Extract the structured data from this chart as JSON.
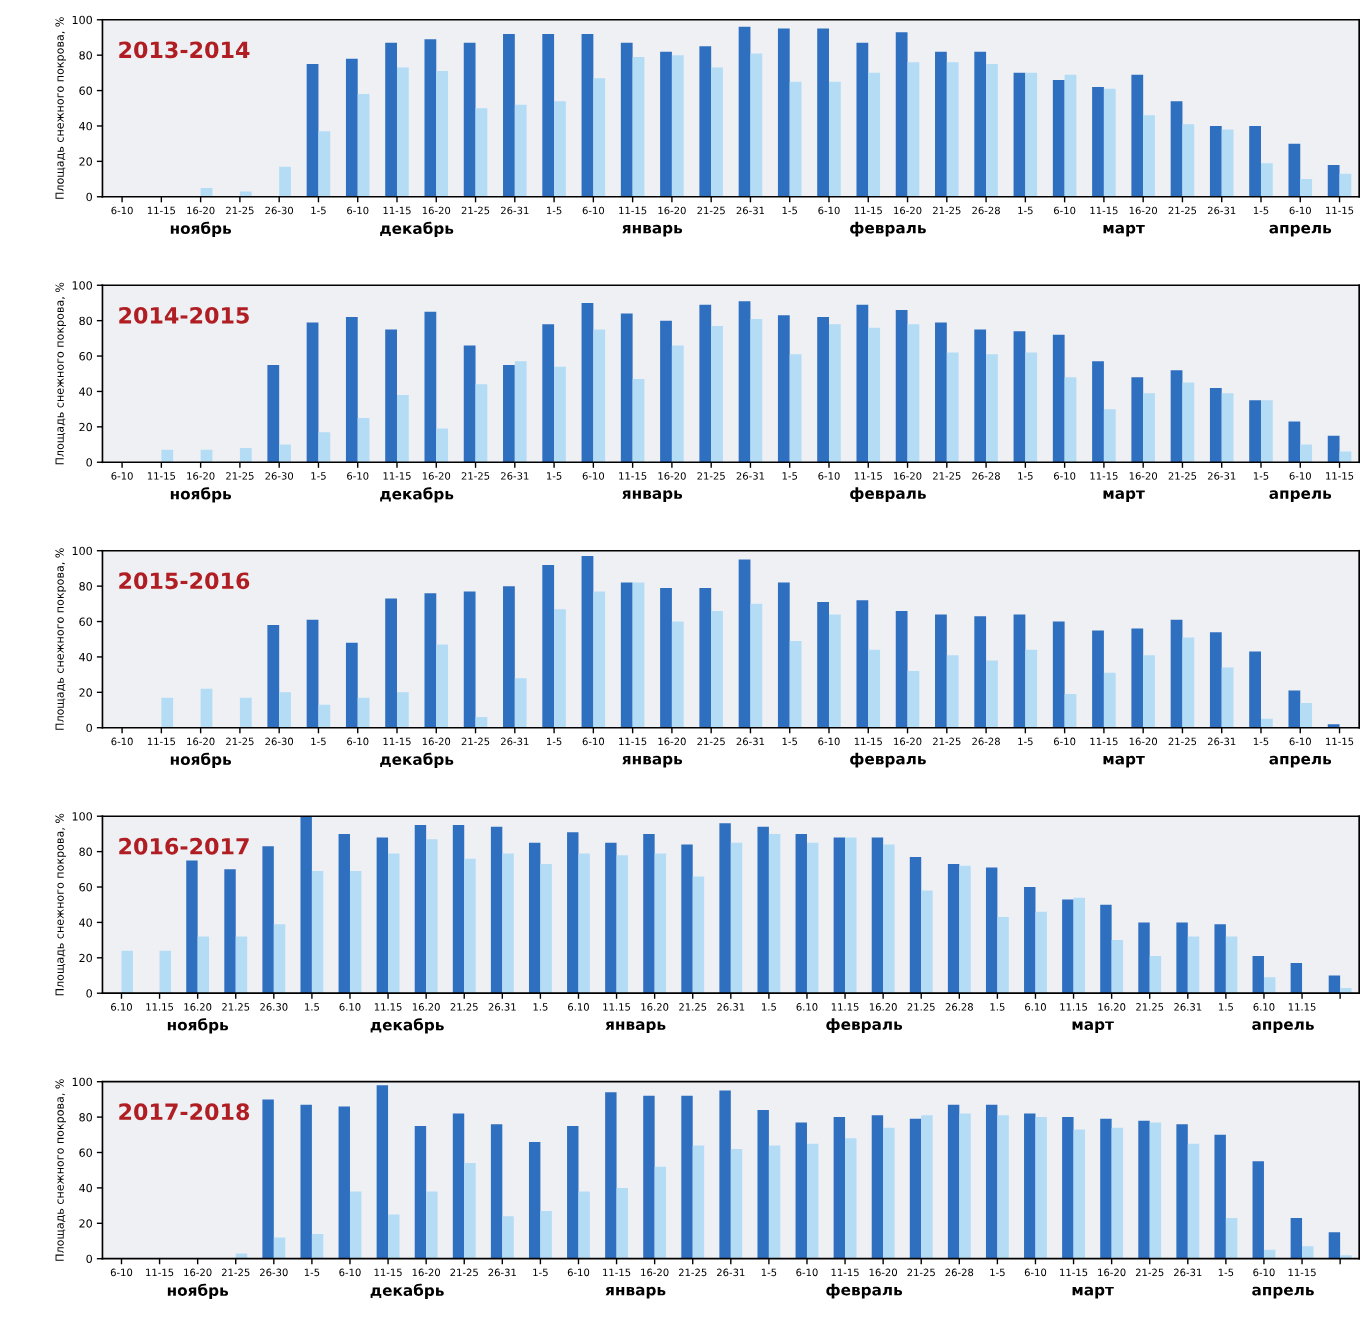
{
  "chart_data": [
    {
      "type": "bar",
      "title": "2013-2014",
      "ylabel": "Площадь снежного покрова, %",
      "ylim": [
        0,
        100
      ],
      "yticks": [
        0,
        20,
        40,
        60,
        80,
        100
      ],
      "categories": [
        "6-10",
        "11-15",
        "16-20",
        "21-25",
        "26-30",
        "1-5",
        "6-10",
        "11-15",
        "16-20",
        "21-25",
        "26-31",
        "1-5",
        "6-10",
        "11-15",
        "16-20",
        "21-25",
        "26-31",
        "1-5",
        "6-10",
        "11-15",
        "16-20",
        "21-25",
        "26-28",
        "1-5",
        "6-10",
        "11-15",
        "16-20",
        "21-25",
        "26-31",
        "1-5",
        "6-10",
        "11-15"
      ],
      "series": [
        {
          "color": "#2f6fc0",
          "values": [
            0,
            0,
            0,
            0,
            0,
            75,
            78,
            87,
            89,
            87,
            92,
            92,
            92,
            87,
            82,
            85,
            96,
            95,
            95,
            87,
            93,
            82,
            82,
            70,
            66,
            62,
            69,
            54,
            40,
            40,
            30,
            18
          ]
        },
        {
          "color": "#b5dcf5",
          "values": [
            0,
            0,
            5,
            3,
            17,
            37,
            58,
            73,
            71,
            50,
            52,
            54,
            67,
            79,
            80,
            73,
            81,
            65,
            65,
            70,
            76,
            76,
            75,
            70,
            69,
            61,
            46,
            41,
            38,
            19,
            10,
            13
          ]
        }
      ],
      "annotations": [
        "ноябрь",
        "декабрь",
        "январь",
        "февраль",
        "март",
        "апрель"
      ]
    },
    {
      "type": "bar",
      "title": "2014-2015",
      "ylabel": "Площадь снежного покрова, %",
      "ylim": [
        0,
        100
      ],
      "yticks": [
        0,
        20,
        40,
        60,
        80,
        100
      ],
      "categories": [
        "6-10",
        "11-15",
        "16-20",
        "21-25",
        "26-30",
        "1-5",
        "6-10",
        "11-15",
        "16-20",
        "21-25",
        "26-31",
        "1-5",
        "6-10",
        "11-15",
        "16-20",
        "21-25",
        "26-31",
        "1-5",
        "6-10",
        "11-15",
        "16-20",
        "21-25",
        "26-28",
        "1-5",
        "6-10",
        "11-15",
        "16-20",
        "21-25",
        "26-31",
        "1-5",
        "6-10",
        "11-15"
      ],
      "series": [
        {
          "color": "#2f6fc0",
          "values": [
            0,
            0,
            0,
            0,
            55,
            79,
            82,
            75,
            85,
            66,
            55,
            78,
            90,
            84,
            80,
            89,
            91,
            83,
            82,
            89,
            86,
            79,
            75,
            74,
            72,
            57,
            48,
            52,
            42,
            35,
            23,
            15
          ]
        },
        {
          "color": "#b5dcf5",
          "values": [
            0,
            7,
            7,
            8,
            10,
            17,
            25,
            38,
            19,
            44,
            57,
            54,
            75,
            47,
            66,
            77,
            81,
            61,
            78,
            76,
            78,
            62,
            61,
            62,
            48,
            30,
            39,
            45,
            39,
            35,
            10,
            6
          ]
        }
      ],
      "annotations": [
        "ноябрь",
        "декабрь",
        "январь",
        "февраль",
        "март",
        "апрель"
      ]
    },
    {
      "type": "bar",
      "title": "2015-2016",
      "ylabel": "Площадь снежного покрова, %",
      "ylim": [
        0,
        100
      ],
      "yticks": [
        0,
        20,
        40,
        60,
        80,
        100
      ],
      "categories": [
        "6-10",
        "11-15",
        "16-20",
        "21-25",
        "26-30",
        "1-5",
        "6-10",
        "11-15",
        "16-20",
        "21-25",
        "26-31",
        "1-5",
        "6-10",
        "11-15",
        "16-20",
        "21-25",
        "26-31",
        "1-5",
        "6-10",
        "11-15",
        "16-20",
        "21-25",
        "26-28",
        "1-5",
        "6-10",
        "11-15",
        "16-20",
        "21-25",
        "26-31",
        "1-5",
        "6-10",
        "11-15"
      ],
      "series": [
        {
          "color": "#2f6fc0",
          "values": [
            0,
            0,
            0,
            0,
            58,
            61,
            48,
            73,
            76,
            77,
            80,
            92,
            97,
            82,
            79,
            79,
            95,
            82,
            71,
            72,
            66,
            64,
            63,
            64,
            60,
            55,
            56,
            61,
            54,
            43,
            21,
            2
          ]
        },
        {
          "color": "#b5dcf5",
          "values": [
            0,
            17,
            22,
            17,
            20,
            13,
            17,
            20,
            47,
            6,
            28,
            67,
            77,
            82,
            60,
            66,
            70,
            49,
            64,
            44,
            32,
            41,
            38,
            44,
            19,
            31,
            41,
            51,
            34,
            5,
            14,
            0
          ]
        }
      ],
      "annotations": [
        "ноябрь",
        "декабрь",
        "январь",
        "февраль",
        "март",
        "апрель"
      ]
    },
    {
      "type": "bar",
      "title": "2016-2017",
      "ylabel": "Площадь снежного покрова, %",
      "ylim": [
        0,
        100
      ],
      "yticks": [
        0,
        20,
        40,
        60,
        80,
        100
      ],
      "categories": [
        "6.10",
        "11.15",
        "16.20",
        "21.25",
        "26.30",
        "1.5",
        "6.10",
        "11.15",
        "16.20",
        "21.25",
        "26.31",
        "1.5",
        "6.10",
        "11.15",
        "16.20",
        "21.25",
        "26.31",
        "1.5",
        "6.10",
        "11.15",
        "16.20",
        "21.25",
        "26.28",
        "1.5",
        "6.10",
        "11.15",
        "16.20",
        "21.25",
        "26.31",
        "1.5",
        "6.10",
        "11.15",
        null
      ],
      "series": [
        {
          "color": "#2f6fc0",
          "values": [
            0,
            0,
            75,
            70,
            83,
            100,
            90,
            88,
            95,
            95,
            94,
            85,
            91,
            85,
            90,
            84,
            96,
            94,
            90,
            88,
            88,
            77,
            73,
            71,
            60,
            53,
            50,
            40,
            40,
            39,
            21,
            17,
            10
          ]
        },
        {
          "color": "#b5dcf5",
          "values": [
            24,
            24,
            32,
            32,
            39,
            69,
            69,
            79,
            87,
            76,
            79,
            73,
            79,
            78,
            79,
            66,
            85,
            90,
            85,
            88,
            84,
            58,
            72,
            43,
            46,
            54,
            30,
            21,
            32,
            32,
            9,
            null,
            3
          ]
        }
      ],
      "annotations": [
        "ноябрь",
        "декабрь",
        "январь",
        "февраль",
        "март",
        "апрель"
      ]
    },
    {
      "type": "bar",
      "title": "2017-2018",
      "ylabel": "Площадь снежного покрова, %",
      "ylim": [
        0,
        100
      ],
      "yticks": [
        0,
        20,
        40,
        60,
        80,
        100
      ],
      "categories": [
        "6-10",
        "11-15",
        "16-20",
        "21-25",
        "26-30",
        "1-5",
        "6-10",
        "11-15",
        "16-20",
        "21-25",
        "26-31",
        "1-5",
        "6-10",
        "11-15",
        "16-20",
        "21-25",
        "26-31",
        "1-5",
        "6-10",
        "11-15",
        "16-20",
        "21-25",
        "26-28",
        "1-5",
        "6-10",
        "11-15",
        "16-20",
        "21-25",
        "26-31",
        "1-5",
        "6-10",
        "11-15",
        null
      ],
      "series": [
        {
          "color": "#2f6fc0",
          "values": [
            0,
            0,
            0,
            0,
            90,
            87,
            86,
            98,
            75,
            82,
            76,
            66,
            75,
            94,
            92,
            92,
            95,
            84,
            77,
            80,
            81,
            79,
            87,
            87,
            82,
            80,
            79,
            78,
            76,
            70,
            55,
            23,
            15
          ]
        },
        {
          "color": "#b5dcf5",
          "values": [
            0,
            0,
            0,
            3,
            12,
            14,
            38,
            25,
            38,
            54,
            24,
            27,
            38,
            40,
            52,
            64,
            62,
            64,
            65,
            68,
            74,
            81,
            82,
            81,
            80,
            73,
            74,
            77,
            65,
            23,
            5,
            7,
            2
          ]
        }
      ],
      "annotations": [
        "ноябрь",
        "декабрь",
        "январь",
        "февраль",
        "март",
        "апрель"
      ]
    }
  ]
}
